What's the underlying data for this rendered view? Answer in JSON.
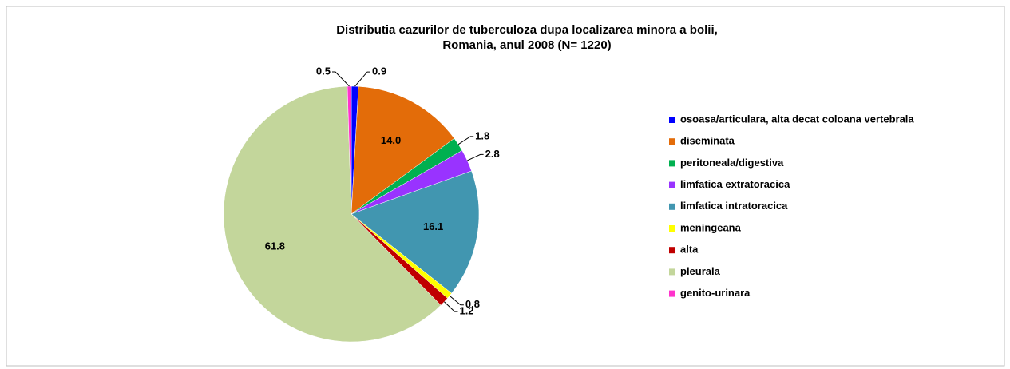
{
  "chart_data": {
    "type": "pie",
    "title": [
      "Distributia cazurilor de tuberculoza dupa localizarea minora a bolii,",
      "Romania, anul 2008 (N= 1220)"
    ],
    "categories": [
      "osoasa/articulara, alta decat coloana vertebrala",
      "diseminata",
      "peritoneala/digestiva",
      "limfatica extratoracica",
      "limfatica intratoracica",
      "meningeana",
      "alta",
      "pleurala",
      "genito-urinara"
    ],
    "values": [
      0.9,
      14.0,
      1.8,
      2.8,
      16.1,
      0.8,
      1.2,
      61.8,
      0.5
    ],
    "value_labels": [
      "0.9",
      "14.0",
      "1.8",
      "2.8",
      "16.1",
      "0.8",
      "1.2",
      "61.8",
      "0.5"
    ],
    "colors": [
      "#0000ff",
      "#e36c09",
      "#00b050",
      "#9933ff",
      "#4196b0",
      "#ffff00",
      "#c00000",
      "#c3d69b",
      "#ff33cc"
    ],
    "legend": "right"
  }
}
